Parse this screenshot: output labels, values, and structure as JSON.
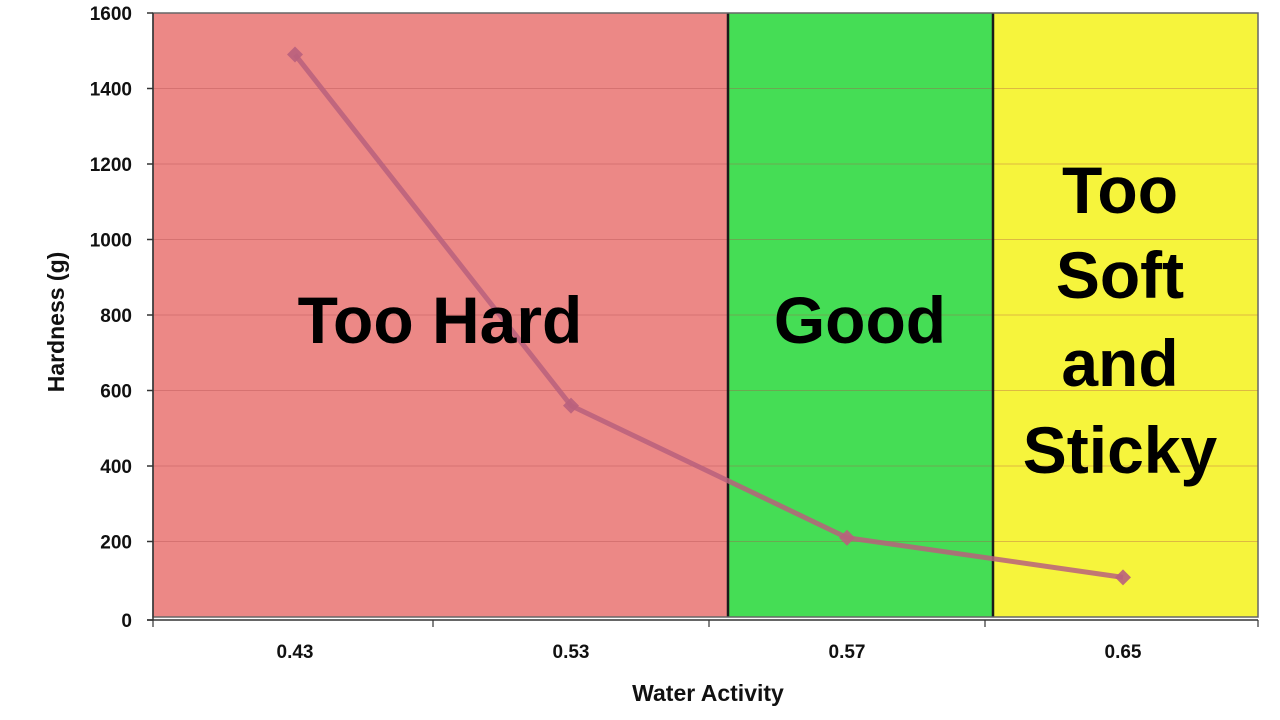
{
  "chart_data": {
    "type": "line",
    "title": "",
    "xlabel": "Water Activity",
    "ylabel": "Hardness (g)",
    "categories": [
      "0.43",
      "0.53",
      "0.57",
      "0.65"
    ],
    "ylim": [
      0,
      1600
    ],
    "yticks": [
      0,
      200,
      400,
      600,
      800,
      1000,
      1200,
      1400,
      1600
    ],
    "grid": "horizontal",
    "series": [
      {
        "values": [
          1490,
          560,
          210,
          105
        ],
        "color": "#b9607d"
      }
    ],
    "zones": [
      {
        "label_lines": [
          "Too Hard"
        ],
        "from_category": "0.43",
        "to": "boundary between 0.53 and 0.57",
        "color": "#ec8886"
      },
      {
        "label_lines": [
          "Good"
        ],
        "from": "boundary between 0.53 and 0.57",
        "to": "boundary between 0.57 and 0.65",
        "color": "#45dd55"
      },
      {
        "label_lines": [
          "Too",
          "Soft",
          "and",
          "Sticky"
        ],
        "from": "boundary between 0.57 and 0.65",
        "to_category": "0.65",
        "color": "#f6f43c"
      }
    ],
    "colors": {
      "zone_border": "#1a1a1a",
      "gridline": "#b04a4a",
      "axis": "#333333"
    }
  }
}
